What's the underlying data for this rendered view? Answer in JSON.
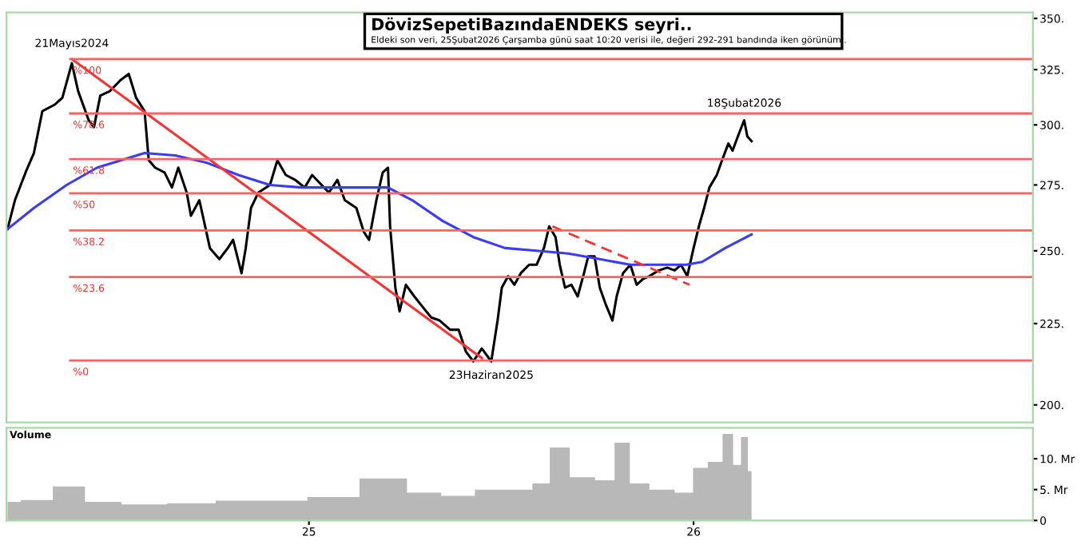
{
  "chart_data": [
    {
      "type": "line",
      "title": "DövizSepetiBazındaENDEKS seyri..",
      "subtitle": "Eldeki son veri, 25Şubat2026 Çarşamba günü saat 10:20 verisi ile, değeri 292-291 bandında iken görünüm..",
      "log": "y",
      "grid": false,
      "tick_labels": "y",
      "marker": "none",
      "xlim": [
        "2024-03-20",
        "2026-11-19"
      ],
      "ylim": [
        195,
        353
      ],
      "yticks": [
        {
          "value": 200,
          "label": "200."
        },
        {
          "value": 225,
          "label": "225."
        },
        {
          "value": 250,
          "label": "250."
        },
        {
          "value": 275,
          "label": "275."
        },
        {
          "value": 300,
          "label": "300."
        },
        {
          "value": 325,
          "label": "325."
        },
        {
          "value": 350,
          "label": "350."
        }
      ],
      "series": [
        {
          "color": "#000000",
          "line_style": "solid",
          "x": [
            "2024-03-21",
            "2024-03-28",
            "2024-04-08",
            "2024-04-15",
            "2024-04-23",
            "2024-05-05",
            "2024-05-12",
            "2024-05-21",
            "2024-05-27",
            "2024-06-06",
            "2024-06-11",
            "2024-06-17",
            "2024-06-26",
            "2024-07-06",
            "2024-07-14",
            "2024-07-21",
            "2024-07-29",
            "2024-08-02",
            "2024-08-08",
            "2024-08-17",
            "2024-08-24",
            "2024-08-30",
            "2024-09-07",
            "2024-09-11",
            "2024-09-19",
            "2024-09-29",
            "2024-10-08",
            "2024-10-16",
            "2024-10-21",
            "2024-10-29",
            "2024-11-02",
            "2024-11-07",
            "2024-11-14",
            "2024-11-25",
            "2024-12-02",
            "2024-12-10",
            "2024-12-19",
            "2024-12-28",
            "2025-01-04",
            "2025-01-13",
            "2025-01-20",
            "2025-01-28",
            "2025-02-04",
            "2025-02-15",
            "2025-02-22",
            "2025-02-27",
            "2025-03-06",
            "2025-03-12",
            "2025-03-17",
            "2025-03-19",
            "2025-03-24",
            "2025-03-28",
            "2025-04-03",
            "2025-04-11",
            "2025-04-20",
            "2025-04-27",
            "2025-05-05",
            "2025-05-15",
            "2025-05-23",
            "2025-05-30",
            "2025-06-06",
            "2025-06-14",
            "2025-06-23",
            "2025-06-29",
            "2025-07-03",
            "2025-07-09",
            "2025-07-15",
            "2025-07-21",
            "2025-07-29",
            "2025-08-05",
            "2025-08-12",
            "2025-08-17",
            "2025-08-23",
            "2025-08-27",
            "2025-09-01",
            "2025-09-07",
            "2025-09-13",
            "2025-09-19",
            "2025-09-23",
            "2025-09-29",
            "2025-10-04",
            "2025-10-10",
            "2025-10-16",
            "2025-10-20",
            "2025-10-26",
            "2025-11-02",
            "2025-11-08",
            "2025-11-14",
            "2025-11-20",
            "2025-11-29",
            "2025-12-07",
            "2025-12-14",
            "2025-12-20",
            "2025-12-26",
            "2026-01-01",
            "2026-01-06",
            "2026-01-11",
            "2026-01-16",
            "2026-01-23",
            "2026-01-28",
            "2026-02-03",
            "2026-02-07",
            "2026-02-12",
            "2026-02-18",
            "2026-02-21",
            "2026-02-25"
          ],
          "values": [
            258,
            269,
            281,
            288,
            306,
            309,
            312,
            328,
            315,
            302,
            299,
            313,
            315,
            320,
            323,
            312,
            306,
            285,
            282,
            280,
            274,
            282,
            272,
            263,
            269,
            251,
            247,
            251,
            254,
            242,
            251,
            266,
            272,
            275,
            285,
            279,
            277,
            274,
            279,
            275,
            272,
            277,
            269,
            266,
            257,
            254,
            269,
            280,
            282,
            259,
            237,
            229,
            238,
            234,
            230,
            227,
            226,
            223,
            223,
            216,
            213,
            217,
            213,
            226,
            237,
            241,
            238,
            242,
            245,
            245,
            251,
            259,
            255,
            245,
            237,
            238,
            234,
            242,
            248,
            248,
            237,
            231,
            226,
            234,
            242,
            245,
            238,
            240,
            241,
            243,
            244,
            243,
            245,
            241,
            251,
            259,
            266,
            274,
            279,
            285,
            292,
            289,
            295,
            302,
            295,
            293
          ]
        },
        {
          "color": "#3a3aff",
          "line_style": "solid",
          "x": [
            "2024-03-21",
            "2024-04-15",
            "2024-05-16",
            "2024-06-14",
            "2024-07-29",
            "2024-08-27",
            "2024-09-26",
            "2024-10-26",
            "2024-11-25",
            "2024-12-25",
            "2025-02-07",
            "2025-03-17",
            "2025-04-09",
            "2025-05-08",
            "2025-06-06",
            "2025-07-06",
            "2025-08-05",
            "2025-09-04",
            "2025-10-04",
            "2025-11-02",
            "2025-12-02",
            "2025-12-25",
            "2026-01-09",
            "2026-01-31",
            "2026-02-25"
          ],
          "values": [
            258,
            266,
            275,
            282,
            288,
            287,
            284,
            279,
            275,
            274,
            274,
            274,
            269,
            261,
            255,
            251,
            250,
            249,
            247,
            245,
            245,
            245,
            246,
            251,
            256
          ]
        },
        {
          "color": "#ff3030",
          "line_style": "solid",
          "x": [
            "2024-05-21",
            "2025-06-14"
          ],
          "values": [
            330,
            214
          ]
        },
        {
          "color": "#ff3030",
          "line_style": "dashed",
          "x": [
            "2025-08-20",
            "2025-12-28"
          ],
          "values": [
            259,
            238
          ]
        }
      ],
      "ref_lines": [
        {
          "axis": "y",
          "value": 330,
          "color": "#ff6060"
        },
        {
          "axis": "y",
          "value": 305,
          "color": "#ff6060"
        },
        {
          "axis": "y",
          "value": 285.5,
          "color": "#ff6060"
        },
        {
          "axis": "y",
          "value": 271.7,
          "color": "#ff6060"
        },
        {
          "axis": "y",
          "value": 257.5,
          "color": "#ff6060"
        },
        {
          "axis": "y",
          "value": 240.7,
          "color": "#ff6060"
        },
        {
          "axis": "y",
          "value": 213.3,
          "color": "#ff6060"
        }
      ],
      "annotations": [
        {
          "text": "%100",
          "x": "2024-05-21",
          "y": 330
        },
        {
          "text": "%78.6",
          "x": "2024-05-21",
          "y": 305
        },
        {
          "text": "%61.8",
          "x": "2024-05-21",
          "y": 285.5
        },
        {
          "text": "%50",
          "x": "2024-05-21",
          "y": 271.7
        },
        {
          "text": "%38.2",
          "x": "2024-05-21",
          "y": 257.5
        },
        {
          "text": "%23.6",
          "x": "2024-05-21",
          "y": 240.7
        },
        {
          "text": "%0",
          "x": "2024-05-21",
          "y": 213.3
        },
        {
          "text": "21Mayıs2024",
          "x": "2024-05-21",
          "y": 331.5
        },
        {
          "text": "23Haziran2025",
          "x": "2025-06-23",
          "y": 213
        },
        {
          "text": "18Şubat2026",
          "x": "2026-02-18",
          "y": 304
        }
      ]
    },
    {
      "type": "area",
      "title": "Volume",
      "grid": false,
      "xlim": [
        "2024-03-20",
        "2026-11-19"
      ],
      "xticks": [
        {
          "value": "2025-01-01",
          "label": "25"
        },
        {
          "value": "2026-01-01",
          "label": "26"
        }
      ],
      "ylim": [
        0,
        15
      ],
      "yticks": [
        {
          "value": 0,
          "label": "0"
        },
        {
          "value": 5,
          "label": "5. Mr"
        },
        {
          "value": 10,
          "label": "10. Mr"
        }
      ],
      "series": [
        {
          "color": "#b8b8b8",
          "x": [
            "2024-03-21",
            "2024-04-15",
            "2024-05-21",
            "2024-06-15",
            "2024-07-29",
            "2024-09-10",
            "2024-10-29",
            "2024-12-10",
            "2025-01-20",
            "2025-03-19",
            "2025-04-20",
            "2025-05-23",
            "2025-06-23",
            "2025-07-21",
            "2025-08-12",
            "2025-08-23",
            "2025-09-19",
            "2025-10-10",
            "2025-10-26",
            "2025-11-08",
            "2025-12-02",
            "2025-12-26",
            "2026-01-06",
            "2026-01-23",
            "2026-02-03",
            "2026-02-12",
            "2026-02-18",
            "2026-02-25"
          ],
          "values": [
            3.0,
            3.3,
            5.5,
            3.0,
            2.6,
            2.8,
            3.2,
            3.2,
            3.8,
            6.8,
            4.5,
            4.0,
            5.0,
            5.0,
            6.0,
            11.8,
            7.0,
            6.5,
            12.6,
            6.0,
            5.0,
            4.5,
            8.5,
            9.5,
            14.0,
            9.0,
            13.5,
            8.0
          ]
        }
      ]
    }
  ]
}
